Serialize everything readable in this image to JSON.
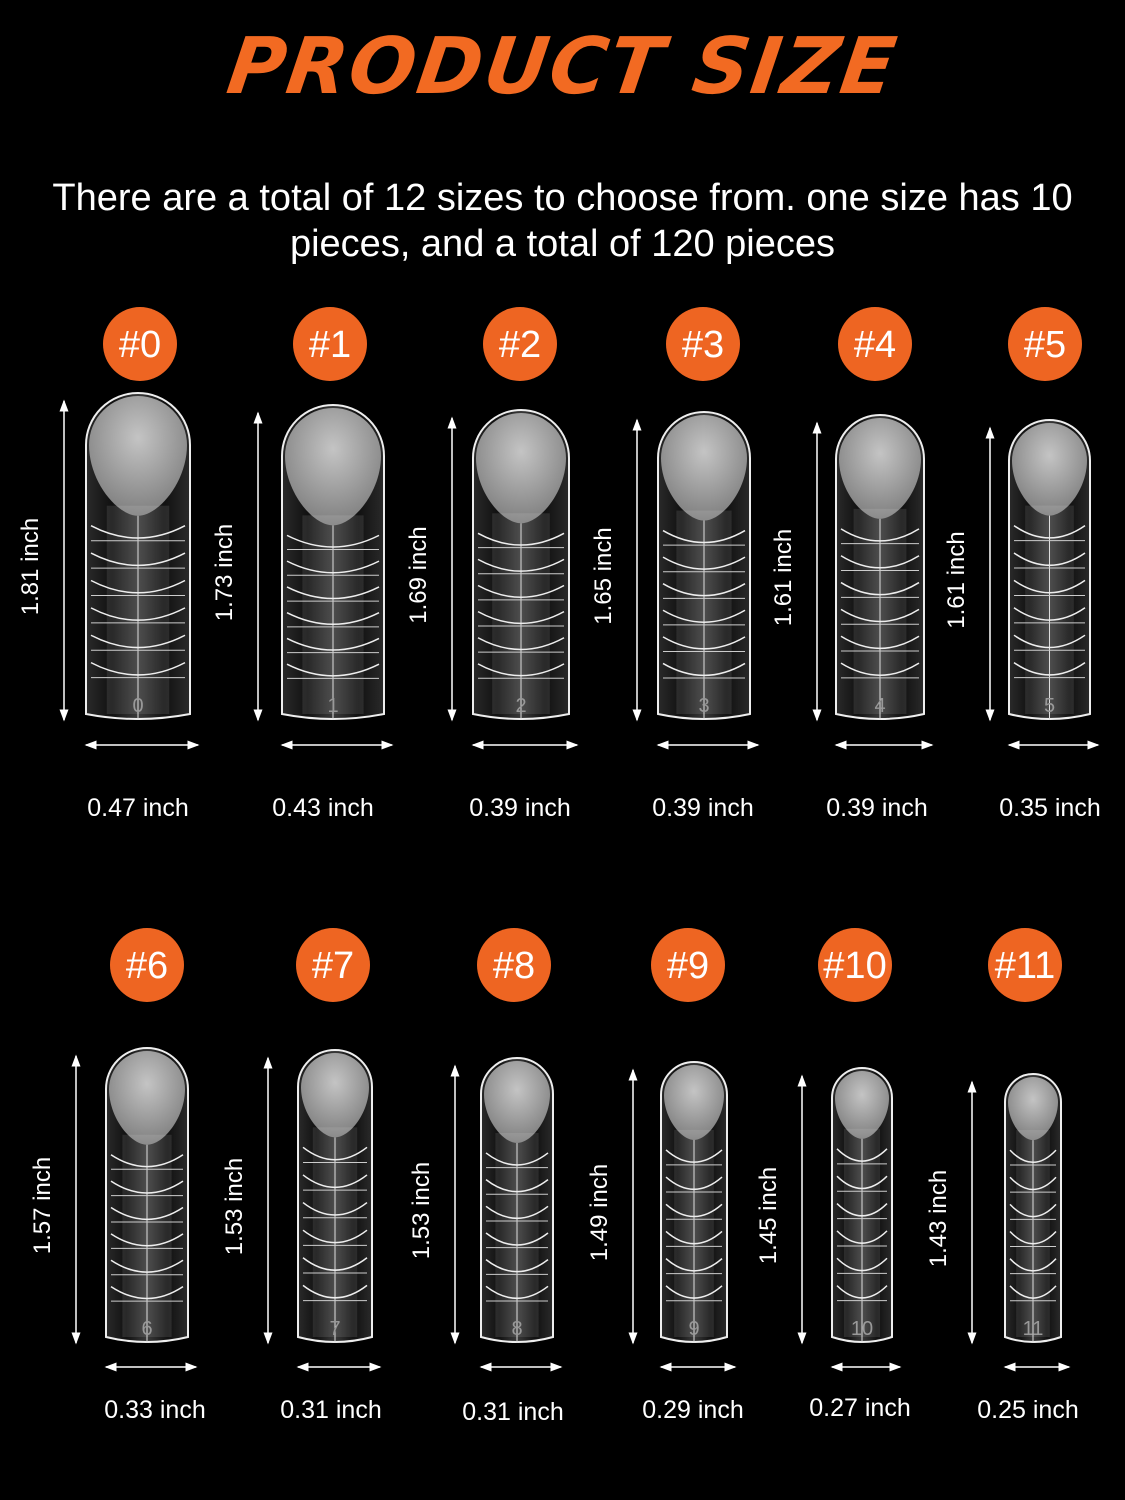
{
  "header": {
    "title": "PRODUCT SIZE",
    "description": "There are a total of 12 sizes to choose from. one size has 10 pieces, and a total of 120 pieces"
  },
  "colors": {
    "accent": "#ee6522",
    "text": "#ffffff",
    "background": "#000000"
  },
  "sizes": [
    {
      "badge": "#0",
      "number": "0",
      "length": "1.81 inch",
      "width": "0.47 inch"
    },
    {
      "badge": "#1",
      "number": "1",
      "length": "1.73 inch",
      "width": "0.43 inch"
    },
    {
      "badge": "#2",
      "number": "2",
      "length": "1.69 inch",
      "width": "0.39 inch"
    },
    {
      "badge": "#3",
      "number": "3",
      "length": "1.65 inch",
      "width": "0.39 inch"
    },
    {
      "badge": "#4",
      "number": "4",
      "length": "1.61 inch",
      "width": "0.39 inch"
    },
    {
      "badge": "#5",
      "number": "5",
      "length": "1.61 inch",
      "width": "0.35 inch"
    },
    {
      "badge": "#6",
      "number": "6",
      "length": "1.57 inch",
      "width": "0.33 inch"
    },
    {
      "badge": "#7",
      "number": "7",
      "length": "1.53 inch",
      "width": "0.31 inch"
    },
    {
      "badge": "#8",
      "number": "8",
      "length": "1.53 inch",
      "width": "0.31 inch"
    },
    {
      "badge": "#9",
      "number": "9",
      "length": "1.49 inch",
      "width": "0.29 inch"
    },
    {
      "badge": "#10",
      "number": "10",
      "length": "1.45 inch",
      "width": "0.27 inch"
    },
    {
      "badge": "#11",
      "number": "11",
      "length": "1.43 inch",
      "width": "0.25 inch"
    }
  ]
}
